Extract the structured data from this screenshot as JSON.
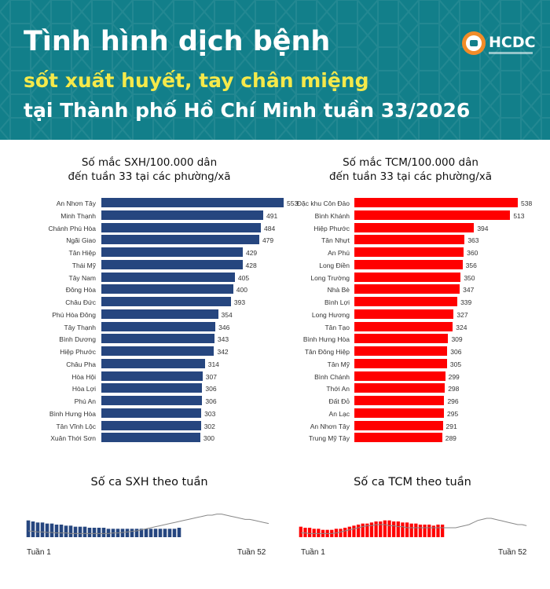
{
  "header": {
    "line1": "Tình hình dịch bệnh",
    "line2": "sốt xuất huyết, tay chân miệng",
    "line3": "tại Thành phố Hồ Chí Minh tuần 33/2026",
    "logo_text": "HCDC"
  },
  "colors": {
    "header_bg": "#127f8a",
    "accent_yellow": "#f5e94a",
    "sxh_bar": "#26467f",
    "tcm_bar": "#ff0000",
    "logo_orange": "#f28c28"
  },
  "chart_data": [
    {
      "type": "bar",
      "orientation": "horizontal",
      "title_line1": "Số mắc SXH/100.000 dân",
      "title_line2": "đến tuần 33 tại các phường/xã",
      "categories": [
        "An Nhơn Tây",
        "Minh Thạnh",
        "Chánh Phú Hòa",
        "Ngãi Giao",
        "Tân Hiệp",
        "Thái Mỹ",
        "Tây Nam",
        "Đông Hòa",
        "Châu Đức",
        "Phú Hòa Đông",
        "Tây Thạnh",
        "Bình Dương",
        "Hiệp Phước",
        "Châu Pha",
        "Hòa Hội",
        "Hòa Lợi",
        "Phú An",
        "Bình Hưng Hòa",
        "Tân Vĩnh Lộc",
        "Xuân Thới Sơn"
      ],
      "values": [
        553,
        491,
        484,
        479,
        429,
        428,
        405,
        400,
        393,
        354,
        346,
        343,
        342,
        314,
        307,
        306,
        306,
        303,
        302,
        300
      ]
    },
    {
      "type": "bar",
      "orientation": "horizontal",
      "title_line1": "Số mắc TCM/100.000 dân",
      "title_line2": "đến tuần 33 tại các phường/xã",
      "categories": [
        "Đặc khu Côn Đảo",
        "Bình Khánh",
        "Hiệp Phước",
        "Tân Nhựt",
        "An Phú",
        "Long Điền",
        "Long Trường",
        "Nhà Bè",
        "Bình Lợi",
        "Long Hương",
        "Tân Tạo",
        "Bình Hưng Hòa",
        "Tân Đông Hiệp",
        "Tân Mỹ",
        "Bình Chánh",
        "Thới An",
        "Đất Đỏ",
        "An Lạc",
        "An Nhơn Tây",
        "Trung Mỹ Tây"
      ],
      "values": [
        538,
        513,
        394,
        363,
        360,
        356,
        350,
        347,
        339,
        327,
        324,
        309,
        306,
        305,
        299,
        298,
        296,
        295,
        291,
        289
      ]
    },
    {
      "type": "bar",
      "title": "Số ca SXH theo tuần",
      "x_start_label": "Tuần 1",
      "x_end_label": "Tuần 52",
      "weeks": [
        1,
        2,
        3,
        4,
        5,
        6,
        7,
        8,
        9,
        10,
        11,
        12,
        13,
        14,
        15,
        16,
        17,
        18,
        19,
        20,
        21,
        22,
        23,
        24,
        25,
        26,
        27,
        28,
        29,
        30,
        31,
        32,
        33
      ],
      "values": [
        16,
        15,
        14,
        14,
        13,
        13,
        12,
        12,
        11,
        11,
        10,
        10,
        10,
        9,
        9,
        9,
        9,
        8,
        8,
        8,
        8,
        8,
        8,
        8,
        8,
        8,
        8,
        8,
        8,
        8,
        8,
        8,
        9
      ],
      "comparison_line": [
        6,
        5.5,
        5,
        5,
        4.5,
        4.5,
        4,
        4,
        4,
        3.5,
        3.5,
        3.5,
        3.5,
        3.5,
        3.5,
        3.5,
        3.5,
        3.5,
        4,
        4,
        4.5,
        5,
        5.5,
        6,
        7,
        8,
        9,
        10,
        11,
        12,
        13,
        14,
        15,
        16,
        17,
        18,
        19,
        20,
        21,
        21,
        22,
        22,
        21,
        20,
        19,
        18,
        17,
        17,
        16,
        15,
        14,
        13
      ]
    },
    {
      "type": "bar",
      "title": "Số ca TCM theo tuần",
      "x_start_label": "Tuần 1",
      "x_end_label": "Tuần 52",
      "weeks": [
        1,
        2,
        3,
        4,
        5,
        6,
        7,
        8,
        9,
        10,
        11,
        12,
        13,
        14,
        15,
        16,
        17,
        18,
        19,
        20,
        21,
        22,
        23,
        24,
        25,
        26,
        27,
        28,
        29,
        30,
        31,
        32,
        33
      ],
      "values": [
        10,
        9,
        9,
        8,
        8,
        7,
        7,
        7,
        8,
        8,
        9,
        10,
        11,
        12,
        13,
        13,
        14,
        15,
        15,
        16,
        16,
        15,
        15,
        14,
        14,
        13,
        13,
        12,
        12,
        12,
        11,
        12,
        12
      ],
      "comparison_line": [
        4,
        4,
        3.5,
        3.5,
        3.5,
        3.5,
        3.5,
        3.5,
        4,
        5,
        6,
        7,
        8,
        9,
        10,
        11,
        11,
        12,
        12,
        12,
        11,
        11,
        10,
        10,
        9,
        9,
        9,
        9,
        9,
        9,
        9,
        9,
        9,
        9,
        9,
        9,
        10,
        11,
        12,
        14,
        16,
        17,
        18,
        18,
        17,
        16,
        15,
        14,
        13,
        12,
        12,
        11
      ]
    }
  ]
}
